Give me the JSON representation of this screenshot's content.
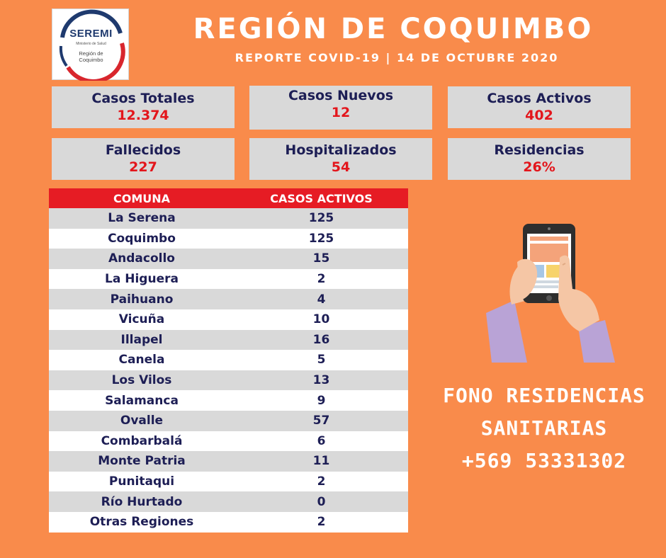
{
  "logo": {
    "title": "SEREMI",
    "ministry": "Ministerio de Salud",
    "region_line1": "Región de",
    "region_line2": "Coquimbo"
  },
  "header": {
    "title": "REGIÓN DE COQUIMBO",
    "subtitle": "REPORTE COVID-19 | 14 DE OCTUBRE 2020"
  },
  "stats": [
    {
      "label": "Casos Totales",
      "value": "12.374"
    },
    {
      "label": "Casos Nuevos",
      "value": "12"
    },
    {
      "label": "Casos Activos",
      "value": "402"
    },
    {
      "label": "Fallecidos",
      "value": "227"
    },
    {
      "label": "Hospitalizados",
      "value": "54"
    },
    {
      "label": "Residencias",
      "value": "26%"
    }
  ],
  "table": {
    "headers": [
      "COMUNA",
      "CASOS ACTIVOS"
    ],
    "rows": [
      [
        "La Serena",
        "125"
      ],
      [
        "Coquimbo",
        "125"
      ],
      [
        "Andacollo",
        "15"
      ],
      [
        "La Higuera",
        "2"
      ],
      [
        "Paihuano",
        "4"
      ],
      [
        "Vicuña",
        "10"
      ],
      [
        "Illapel",
        "16"
      ],
      [
        "Canela",
        "5"
      ],
      [
        "Los Vilos",
        "13"
      ],
      [
        "Salamanca",
        "9"
      ],
      [
        "Ovalle",
        "57"
      ],
      [
        "Combarbalá",
        "6"
      ],
      [
        "Monte Patria",
        "11"
      ],
      [
        "Punitaqui",
        "2"
      ],
      [
        "Río Hurtado",
        "0"
      ],
      [
        "Otras Regiones",
        "2"
      ]
    ]
  },
  "fono": {
    "line1": "FONO RESIDENCIAS",
    "line2": "SANITARIAS",
    "line3": "+569 53331302"
  },
  "colors": {
    "background": "#f98b4b",
    "header_red": "#e61c24",
    "value_red": "#e3161c",
    "label_navy": "#1d1e55",
    "panel_gray": "#d9d9d9"
  },
  "icons": {
    "illustration": "hand-holding-smartphone-icon"
  }
}
